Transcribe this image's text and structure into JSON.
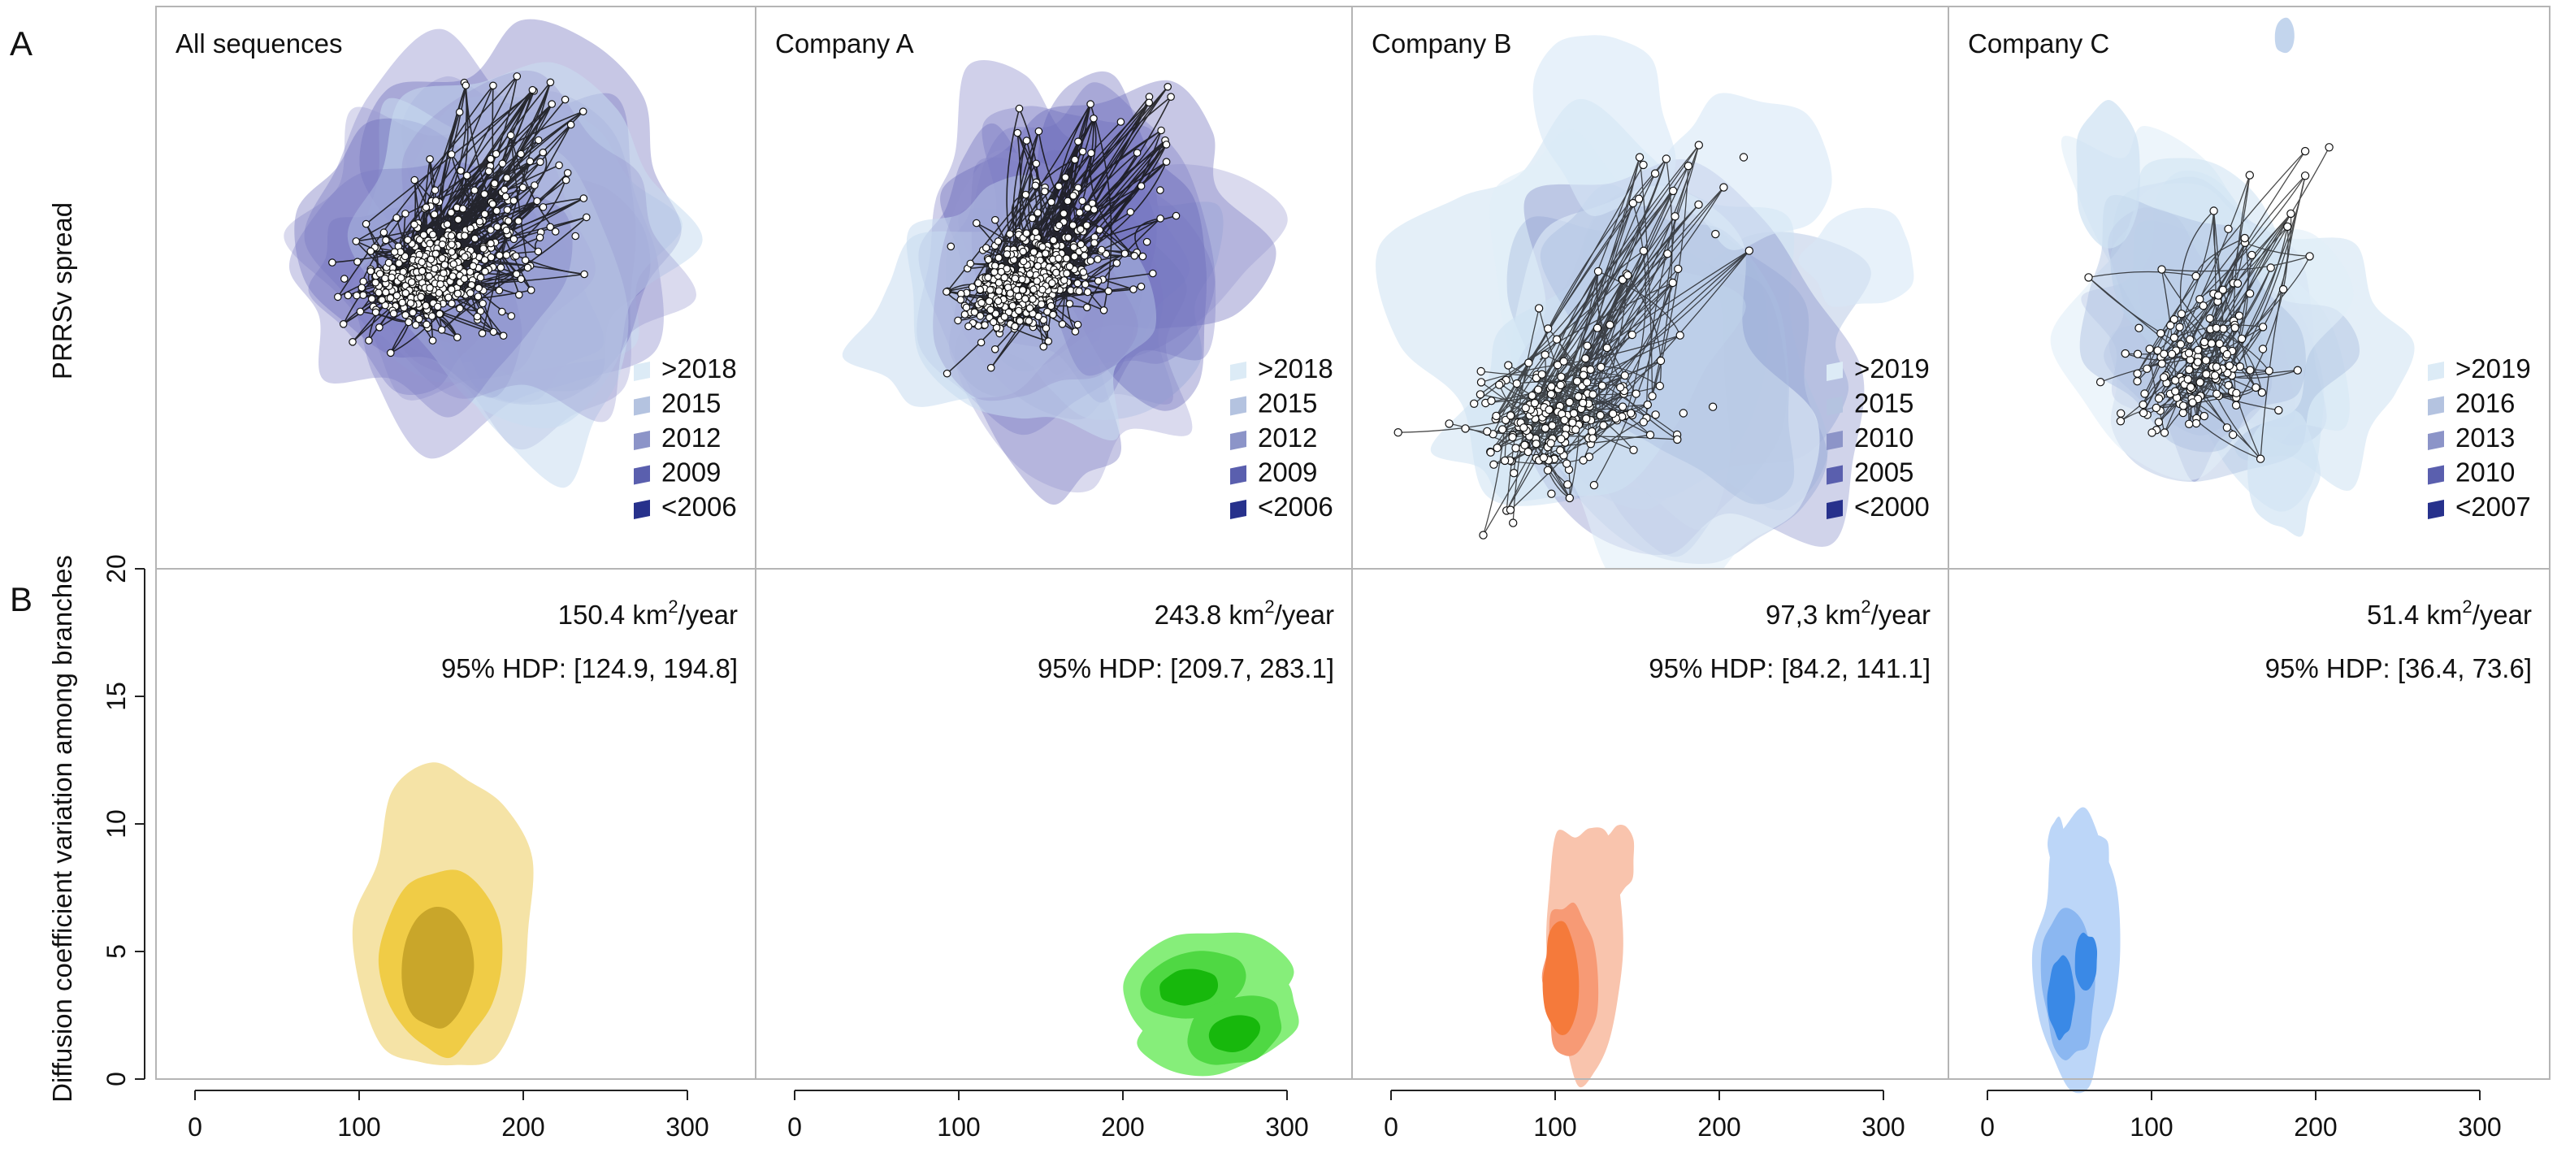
{
  "figure": {
    "row_a_label": "A",
    "row_b_label": "B",
    "row_a_ylabel": "PRRSv spread",
    "row_b_ylabel": "Diffusion coefficient variation among branches"
  },
  "chart_data": [
    {
      "type": "network-map",
      "title": "All sequences",
      "legend": [
        ">2018",
        "2015",
        "2012",
        "2009",
        "<2006"
      ],
      "legend_colors": [
        "#dcebf6",
        "#b4c3e0",
        "#8c94c8",
        "#5a5fae",
        "#27318c"
      ],
      "density": "dense"
    },
    {
      "type": "network-map",
      "title": "Company A",
      "legend": [
        ">2018",
        "2015",
        "2012",
        "2009",
        "<2006"
      ],
      "legend_colors": [
        "#dcebf6",
        "#b4c3e0",
        "#8c94c8",
        "#5a5fae",
        "#27318c"
      ],
      "density": "dense"
    },
    {
      "type": "network-map",
      "title": "Company B",
      "legend": [
        ">2019",
        "2015",
        "2010",
        "2005",
        "<2000"
      ],
      "legend_colors": [
        "#dcebf6",
        "#b4c3e0",
        "#8c94c8",
        "#5a5fae",
        "#27318c"
      ],
      "density": "medium"
    },
    {
      "type": "network-map",
      "title": "Company C",
      "legend": [
        ">2019",
        "2016",
        "2013",
        "2010",
        "<2007"
      ],
      "legend_colors": [
        "#dcebf6",
        "#b4c3e0",
        "#8c94c8",
        "#5a5fae",
        "#27318c"
      ],
      "density": "sparse"
    },
    {
      "type": "density-contour",
      "panel": "All sequences",
      "diffusion_value": "150.4",
      "unit_prefix": " km",
      "unit_sup": "2",
      "unit_suffix": "/year",
      "hdp_text": "95% HDP: [124.9, 194.8]",
      "colors": [
        "#f5e3a6",
        "#f0cc46",
        "#c9a62a"
      ],
      "center": [
        155,
        4.5
      ],
      "xlim": [
        -30,
        330
      ],
      "ylim": [
        0,
        20
      ],
      "xticks": [
        0,
        100,
        200,
        300
      ],
      "yticks": [
        0,
        5,
        10,
        15,
        20
      ]
    },
    {
      "type": "density-contour",
      "panel": "Company A",
      "diffusion_value": "243.8",
      "unit_prefix": " km",
      "unit_sup": "2",
      "unit_suffix": "/year",
      "hdp_text": "95% HDP: [209.7, 283.1]",
      "colors": [
        "#86ee7a",
        "#4fd843",
        "#17b80c"
      ],
      "center": [
        250,
        3
      ],
      "xlim": [
        -30,
        330
      ],
      "ylim": [
        0,
        20
      ],
      "xticks": [
        0,
        100,
        200,
        300
      ]
    },
    {
      "type": "density-contour",
      "panel": "Company B",
      "diffusion_value": "97,3",
      "unit_prefix": " km",
      "unit_sup": "2",
      "unit_suffix": "/year",
      "hdp_text": "95% HDP: [84.2, 141.1]",
      "colors": [
        "#f9c4ad",
        "#f79a75",
        "#f57a3b"
      ],
      "center": [
        110,
        4.5
      ],
      "xlim": [
        -30,
        330
      ],
      "ylim": [
        0,
        20
      ],
      "xticks": [
        0,
        100,
        200,
        300
      ]
    },
    {
      "type": "density-contour",
      "panel": "Company C",
      "diffusion_value": "51.4",
      "unit_prefix": " km",
      "unit_sup": "2",
      "unit_suffix": "/year",
      "hdp_text": "95% HDP: [36.4, 73.6]",
      "colors": [
        "#bcd6f8",
        "#8bb7f1",
        "#3a89e6"
      ],
      "center": [
        55,
        4
      ],
      "xlim": [
        -30,
        330
      ],
      "ylim": [
        0,
        20
      ],
      "xticks": [
        0,
        100,
        200,
        300
      ]
    }
  ]
}
